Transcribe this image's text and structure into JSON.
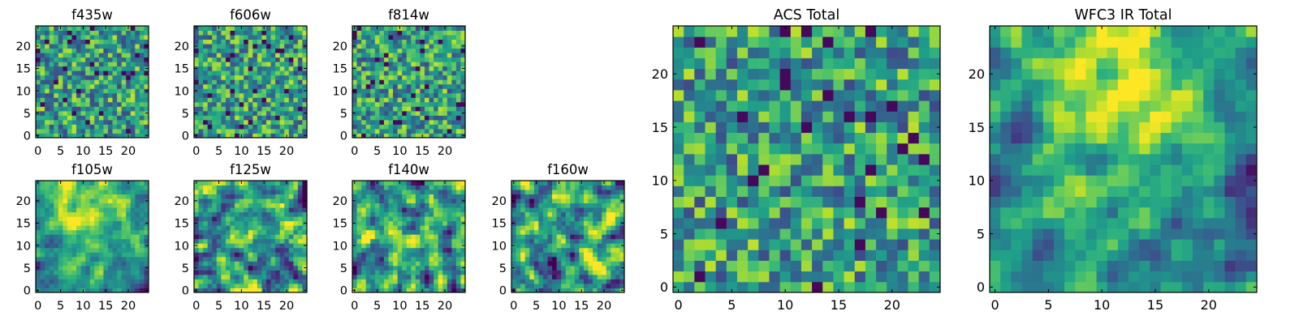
{
  "chart_data": [
    {
      "type": "heatmap",
      "title": "f435w",
      "xlim": [
        -0.5,
        24.5
      ],
      "ylim": [
        -0.5,
        24.5
      ],
      "xticks": [
        0,
        5,
        10,
        15,
        20
      ],
      "yticks": [
        0,
        5,
        10,
        15,
        20
      ],
      "grid_size": [
        25,
        25
      ],
      "colormap": "viridis",
      "pattern": "uniform",
      "seed": 11
    },
    {
      "type": "heatmap",
      "title": "f606w",
      "xlim": [
        -0.5,
        24.5
      ],
      "ylim": [
        -0.5,
        24.5
      ],
      "xticks": [
        0,
        5,
        10,
        15,
        20
      ],
      "yticks": [
        0,
        5,
        10,
        15,
        20
      ],
      "grid_size": [
        25,
        25
      ],
      "colormap": "viridis",
      "pattern": "uniform",
      "seed": 23
    },
    {
      "type": "heatmap",
      "title": "f814w",
      "xlim": [
        -0.5,
        24.5
      ],
      "ylim": [
        -0.5,
        24.5
      ],
      "xticks": [
        0,
        5,
        10,
        15,
        20
      ],
      "yticks": [
        0,
        5,
        10,
        15,
        20
      ],
      "grid_size": [
        25,
        25
      ],
      "colormap": "viridis",
      "pattern": "uniform",
      "seed": 37
    },
    {
      "type": "heatmap",
      "title": "f105w",
      "xlim": [
        -0.5,
        24.5
      ],
      "ylim": [
        -0.5,
        24.5
      ],
      "xticks": [
        0,
        5,
        10,
        15,
        20
      ],
      "yticks": [
        0,
        5,
        10,
        15,
        20
      ],
      "grid_size": [
        25,
        25
      ],
      "colormap": "viridis",
      "pattern": "top-bright",
      "seed": 41
    },
    {
      "type": "heatmap",
      "title": "f125w",
      "xlim": [
        -0.5,
        24.5
      ],
      "ylim": [
        -0.5,
        24.5
      ],
      "xticks": [
        0,
        5,
        10,
        15,
        20
      ],
      "yticks": [
        0,
        5,
        10,
        15,
        20
      ],
      "grid_size": [
        25,
        25
      ],
      "colormap": "viridis",
      "pattern": "mottled",
      "seed": 53
    },
    {
      "type": "heatmap",
      "title": "f140w",
      "xlim": [
        -0.5,
        24.5
      ],
      "ylim": [
        -0.5,
        24.5
      ],
      "xticks": [
        0,
        5,
        10,
        15,
        20
      ],
      "yticks": [
        0,
        5,
        10,
        15,
        20
      ],
      "grid_size": [
        25,
        25
      ],
      "colormap": "viridis",
      "pattern": "mottled",
      "seed": 67
    },
    {
      "type": "heatmap",
      "title": "f160w",
      "xlim": [
        -0.5,
        24.5
      ],
      "ylim": [
        -0.5,
        24.5
      ],
      "xticks": [
        0,
        5,
        10,
        15,
        20
      ],
      "yticks": [
        0,
        5,
        10,
        15,
        20
      ],
      "grid_size": [
        25,
        25
      ],
      "colormap": "viridis",
      "pattern": "mottled",
      "seed": 79
    },
    {
      "type": "heatmap",
      "title": "ACS Total",
      "xlim": [
        -0.5,
        24.5
      ],
      "ylim": [
        -0.5,
        24.5
      ],
      "xticks": [
        0,
        5,
        10,
        15,
        20
      ],
      "yticks": [
        0,
        5,
        10,
        15,
        20
      ],
      "grid_size": [
        25,
        25
      ],
      "colormap": "viridis",
      "pattern": "uniform",
      "seed": 97
    },
    {
      "type": "heatmap",
      "title": "WFC3 IR Total",
      "xlim": [
        -0.5,
        24.5
      ],
      "ylim": [
        -0.5,
        24.5
      ],
      "xticks": [
        0,
        5,
        10,
        15,
        20
      ],
      "yticks": [
        0,
        5,
        10,
        15,
        20
      ],
      "grid_size": [
        25,
        25
      ],
      "colormap": "viridis",
      "pattern": "top-bright",
      "seed": 113
    }
  ]
}
